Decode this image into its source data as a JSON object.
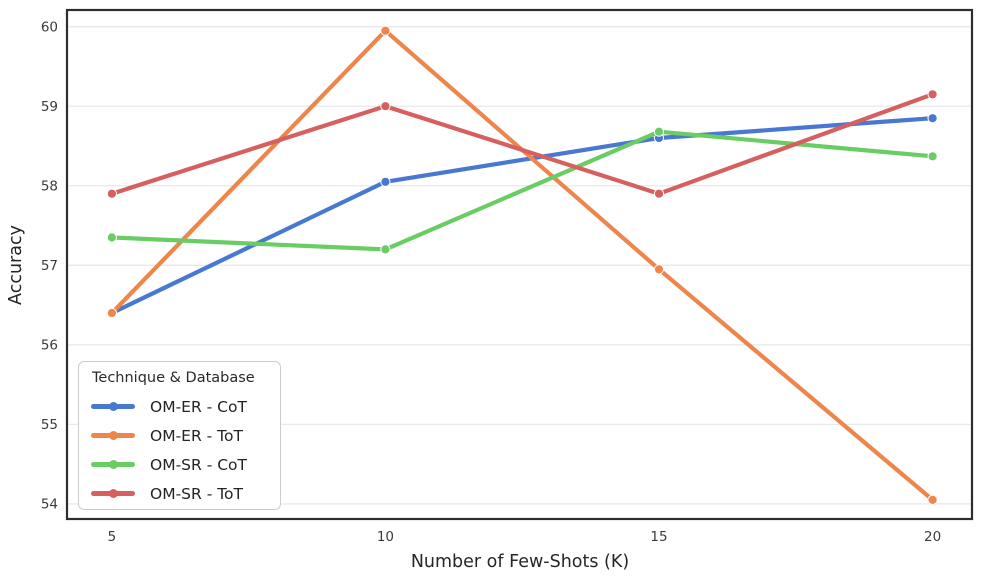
{
  "figure": {
    "background": "#ffffff",
    "frame_color": "#2e2e2e",
    "grid_color": "#e9e9e9"
  },
  "chart_data": {
    "type": "line",
    "title": "",
    "xlabel": "Number of Few-Shots (K)",
    "ylabel": "Accuracy",
    "x": [
      5,
      10,
      15,
      20
    ],
    "x_tick_labels": [
      "5",
      "10",
      "15",
      "20"
    ],
    "y_tick_labels": [
      "54",
      "55",
      "56",
      "57",
      "58",
      "59",
      "60"
    ],
    "xlim": [
      4.18,
      20.72
    ],
    "ylim": [
      53.81,
      60.21
    ],
    "grid": "horizontal-only",
    "legend": {
      "title": "Technique & Database",
      "position": "lower-left"
    },
    "series": [
      {
        "name": "OM-ER - CoT",
        "color": "#4878d0",
        "values": [
          56.4,
          58.05,
          58.6,
          58.85
        ]
      },
      {
        "name": "OM-ER - ToT",
        "color": "#ee854a",
        "values": [
          56.4,
          59.95,
          56.95,
          54.05
        ]
      },
      {
        "name": "OM-SR - CoT",
        "color": "#6acc64",
        "values": [
          57.35,
          57.2,
          58.68,
          58.37
        ]
      },
      {
        "name": "OM-SR - ToT",
        "color": "#d65f5f",
        "values": [
          57.9,
          59.0,
          57.9,
          59.15
        ]
      }
    ]
  }
}
